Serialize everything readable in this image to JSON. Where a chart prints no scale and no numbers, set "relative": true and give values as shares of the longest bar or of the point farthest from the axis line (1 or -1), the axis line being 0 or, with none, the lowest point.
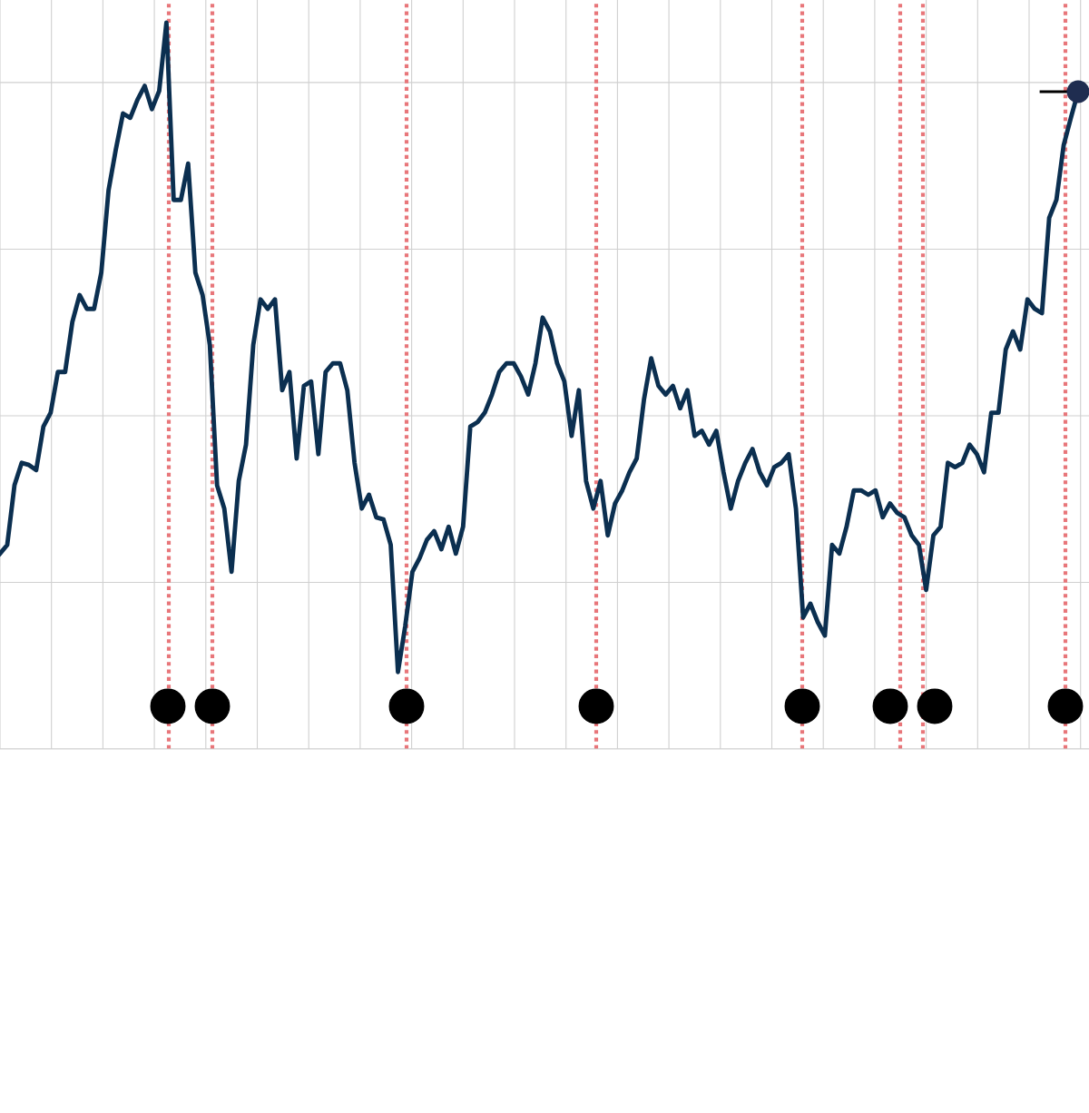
{
  "chart_data": {
    "type": "line",
    "relative": true,
    "grid": true,
    "tick_labels": false,
    "legend": false,
    "categories": [
      null,
      null,
      null,
      null,
      null,
      null,
      null,
      null,
      null,
      null,
      null,
      null,
      null,
      null,
      null,
      null,
      null,
      null,
      null,
      null,
      null,
      null,
      null,
      null,
      null,
      null,
      null,
      null,
      null,
      null,
      null,
      null,
      null,
      null,
      null,
      null,
      null,
      null,
      null,
      null,
      null,
      null,
      null,
      null,
      null,
      null,
      null,
      null,
      null,
      null,
      null,
      null,
      null,
      null,
      null,
      null,
      null,
      null,
      null,
      null,
      null,
      null,
      null,
      null,
      null,
      null,
      null,
      null,
      null,
      null,
      null,
      null,
      null,
      null,
      null,
      null,
      null,
      null,
      null,
      null,
      null,
      null,
      null,
      null,
      null,
      null,
      null,
      null,
      null,
      null,
      null,
      null,
      null,
      null,
      null,
      null,
      null,
      null,
      null,
      null,
      null,
      null,
      null,
      null,
      null,
      null,
      null,
      null,
      null,
      null,
      null,
      null,
      null,
      null,
      null,
      null,
      null,
      null,
      null,
      null,
      null,
      null,
      null,
      null,
      null,
      null,
      null,
      null,
      null,
      null,
      null,
      null,
      null,
      null,
      null,
      null,
      null,
      null,
      null,
      null,
      null,
      null,
      null,
      null,
      null,
      null,
      null,
      null,
      null,
      null
    ],
    "series": [
      {
        "color": "#0b2f50",
        "marker": "none",
        "line_style": "solid",
        "values": [
          0.269,
          0.281,
          0.363,
          0.394,
          0.391,
          0.384,
          0.444,
          0.463,
          0.519,
          0.519,
          0.588,
          0.625,
          0.606,
          0.606,
          0.656,
          0.769,
          0.825,
          0.875,
          0.869,
          0.894,
          0.913,
          0.881,
          0.906,
          1.0,
          0.756,
          0.756,
          0.806,
          0.656,
          0.625,
          0.556,
          0.363,
          0.331,
          0.244,
          0.369,
          0.419,
          0.556,
          0.619,
          0.606,
          0.619,
          0.494,
          0.519,
          0.4,
          0.5,
          0.506,
          0.406,
          0.519,
          0.531,
          0.531,
          0.494,
          0.394,
          0.331,
          0.35,
          0.319,
          0.316,
          0.281,
          0.106,
          0.169,
          0.244,
          0.263,
          0.288,
          0.3,
          0.275,
          0.306,
          0.269,
          0.306,
          0.444,
          0.45,
          0.463,
          0.488,
          0.519,
          0.531,
          0.531,
          0.513,
          0.488,
          0.531,
          0.594,
          0.575,
          0.531,
          0.506,
          0.431,
          0.494,
          0.369,
          0.331,
          0.369,
          0.294,
          0.338,
          0.356,
          0.381,
          0.4,
          0.481,
          0.538,
          0.5,
          0.488,
          0.5,
          0.469,
          0.494,
          0.431,
          0.438,
          0.419,
          0.438,
          0.381,
          0.331,
          0.369,
          0.394,
          0.413,
          0.381,
          0.363,
          0.388,
          0.394,
          0.406,
          0.331,
          0.181,
          0.2,
          0.175,
          0.156,
          0.281,
          0.269,
          0.306,
          0.356,
          0.356,
          0.35,
          0.356,
          0.319,
          0.338,
          0.325,
          0.319,
          0.294,
          0.281,
          0.219,
          0.294,
          0.306,
          0.394,
          0.388,
          0.394,
          0.419,
          0.406,
          0.381,
          0.463,
          0.463,
          0.55,
          0.575,
          0.55,
          0.619,
          0.606,
          0.6,
          0.731,
          0.756,
          0.831,
          0.869,
          0.905
        ]
      }
    ]
  }
}
